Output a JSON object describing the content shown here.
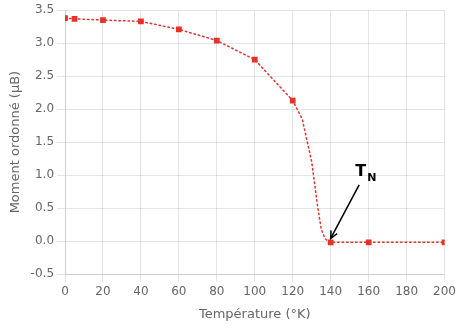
{
  "chart_data": {
    "type": "line",
    "xlabel": "Température (°K)",
    "ylabel": "Moment ordonné (μB)",
    "series": [
      {
        "x": [
          0,
          5,
          20,
          40,
          60,
          80,
          100,
          120,
          125,
          130,
          133,
          135,
          137,
          139,
          140,
          160,
          200
        ],
        "values": [
          3.38,
          3.37,
          3.35,
          3.33,
          3.21,
          3.04,
          2.75,
          2.13,
          1.85,
          1.2,
          0.55,
          0.18,
          0.04,
          -0.02,
          -0.02,
          -0.02,
          -0.02
        ],
        "color": "#e8312a",
        "line_style": "dotted",
        "marker": "none"
      },
      {
        "x": [
          0,
          5,
          20,
          40,
          60,
          80,
          100,
          120,
          140,
          160,
          200
        ],
        "values": [
          3.38,
          3.37,
          3.35,
          3.33,
          3.21,
          3.04,
          2.75,
          2.13,
          -0.02,
          -0.02,
          -0.02
        ],
        "color": "#e8312a",
        "line_style": "none",
        "marker": "square"
      }
    ],
    "xlim": [
      0,
      200
    ],
    "xticks": [
      0,
      20,
      40,
      60,
      80,
      100,
      120,
      140,
      160,
      180,
      200
    ],
    "ylim": [
      -0.5,
      3.5
    ],
    "yticks": [
      -0.5,
      {
        "value": 0,
        "label": "0.0"
      },
      0.5,
      {
        "value": 1,
        "label": "1.0"
      },
      1.5,
      {
        "value": 2,
        "label": "2.0"
      },
      2.5,
      {
        "value": 3,
        "label": "3.0"
      },
      3.5
    ],
    "grid": true,
    "annotations": [
      {
        "text": "T",
        "subscript": "N",
        "x": 153,
        "y": 0.88,
        "arrow_from": [
          155,
          0.85
        ],
        "arrow_to": [
          140,
          0.04
        ]
      }
    ]
  }
}
